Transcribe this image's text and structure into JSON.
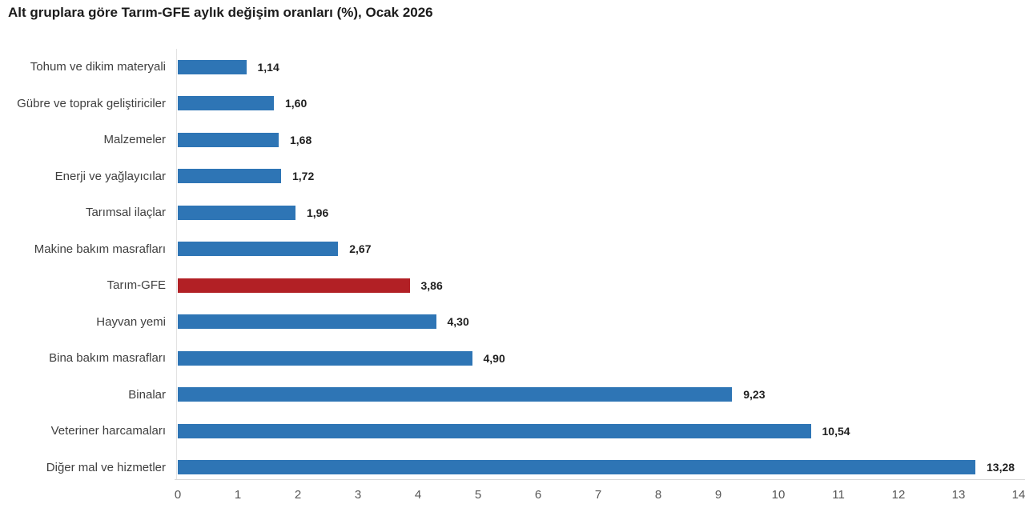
{
  "title": "Alt gruplara göre Tarım-GFE aylık değişim oranları (%), Ocak 2026",
  "colors": {
    "bar": "#2E75B5",
    "highlight_bar": "#B22025",
    "axis_line": "#D9D9D9",
    "tick_text": "#565656",
    "category_text": "#3F3F3F",
    "title_text": "#1B1B1B",
    "background": "#FFFFFF"
  },
  "chart_data": {
    "type": "bar",
    "orientation": "horizontal",
    "title": "Alt gruplara göre Tarım-GFE aylık değişim oranları (%), Ocak 2026",
    "categories": [
      "Tohum ve dikim materyali",
      "Gübre ve toprak geliştiriciler",
      "Malzemeler",
      "Enerji ve yağlayıcılar",
      "Tarımsal ilaçlar",
      "Makine bakım masrafları",
      "Tarım-GFE",
      "Hayvan yemi",
      "Bina bakım masrafları",
      "Binalar",
      "Veteriner harcamaları",
      "Diğer mal ve hizmetler"
    ],
    "values": [
      1.14,
      1.6,
      1.68,
      1.72,
      1.96,
      2.67,
      3.86,
      4.3,
      4.9,
      9.23,
      10.54,
      13.28
    ],
    "value_labels": [
      "1,14",
      "1,60",
      "1,68",
      "1,72",
      "1,96",
      "2,67",
      "3,86",
      "4,30",
      "4,90",
      "9,23",
      "10,54",
      "13,28"
    ],
    "highlight_category": "Tarım-GFE",
    "xlabel": "",
    "ylabel": "",
    "xlim": [
      0,
      14
    ],
    "x_ticks": [
      0,
      1,
      2,
      3,
      4,
      5,
      6,
      7,
      8,
      9,
      10,
      11,
      12,
      13,
      14
    ],
    "grid": false,
    "legend": false
  }
}
